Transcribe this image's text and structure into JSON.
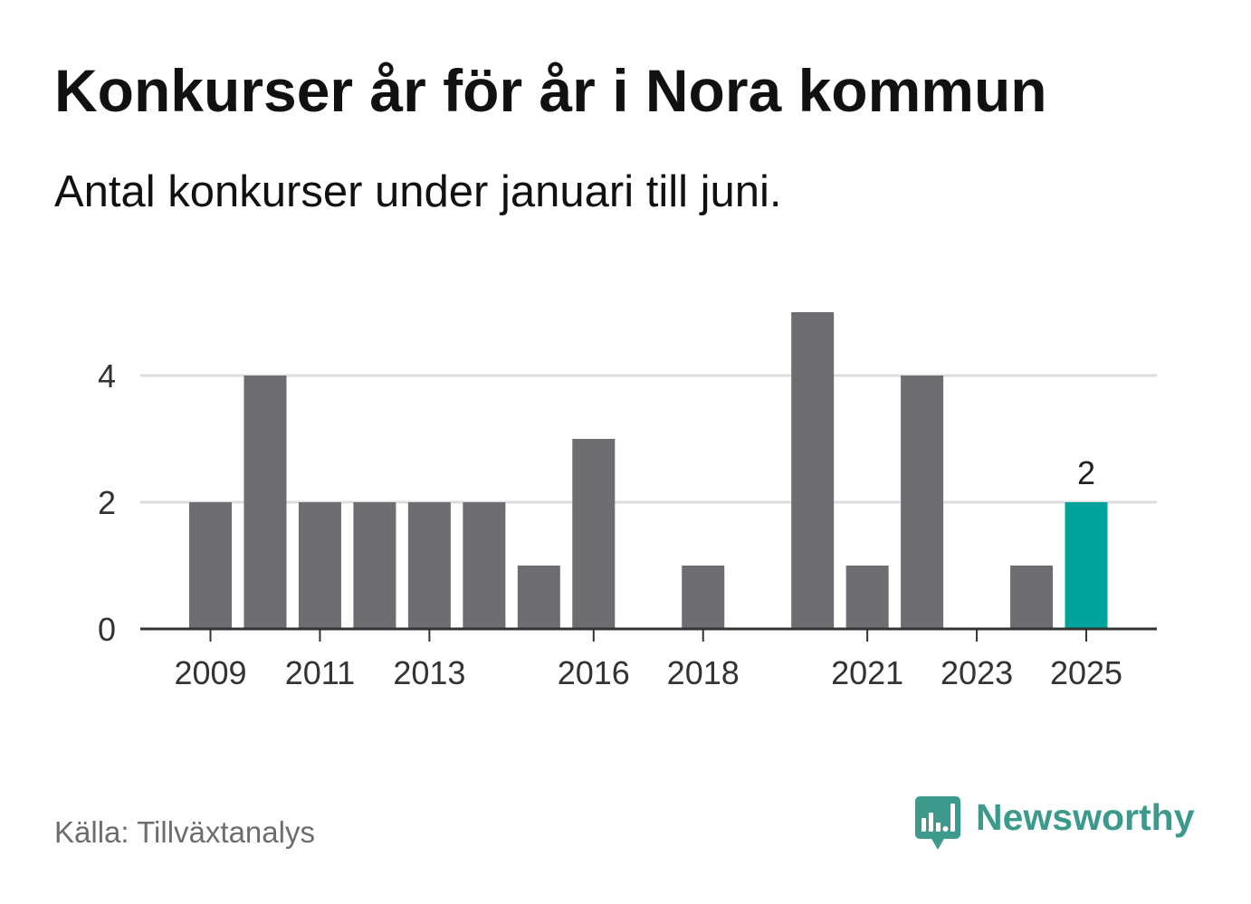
{
  "chart_data": {
    "type": "bar",
    "title": "Konkurser år för år i Nora kommun",
    "subtitle": "Antal konkurser under januari till juni.",
    "x": [
      2009,
      2010,
      2011,
      2012,
      2013,
      2014,
      2015,
      2016,
      2017,
      2018,
      2019,
      2020,
      2021,
      2022,
      2023,
      2024,
      2025
    ],
    "values": [
      2,
      4,
      2,
      2,
      2,
      2,
      1,
      3,
      0,
      1,
      0,
      5,
      1,
      4,
      0,
      1,
      2
    ],
    "x_ticks": [
      2009,
      2011,
      2013,
      2016,
      2018,
      2021,
      2023,
      2025
    ],
    "y_ticks": [
      0,
      2,
      4
    ],
    "ylim": [
      0,
      5
    ],
    "grid": true,
    "bar_color": "#6e6d72",
    "grid_color": "#dddddd",
    "axis_color": "#333333",
    "highlight": {
      "x": 2025,
      "value_label": "2",
      "color": "#00a39a"
    }
  },
  "footer": {
    "source": "Källa: Tillväxtanalys",
    "brand": {
      "name": "Newsworthy",
      "icon": "newsworthy-logo-icon",
      "color": "#3b9a8c"
    }
  }
}
